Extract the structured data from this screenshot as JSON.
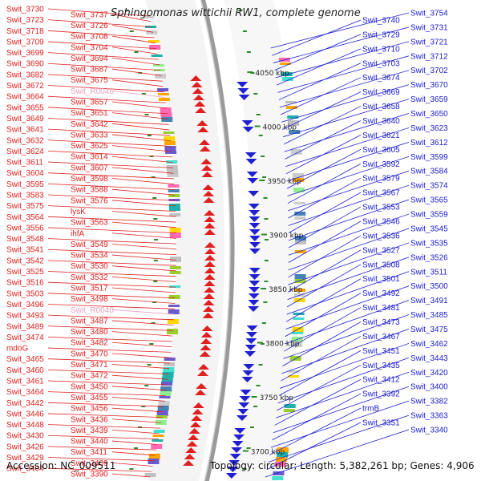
{
  "title": "Sphingomonas wittichii RW1, complete genome",
  "accession": "Accession: NC_009511",
  "topology": "Topology: circular; Length: 5,382,261 bp; Genes: 4,906",
  "colors": {
    "left": "#e02020",
    "right": "#2020d0",
    "rna": "#e8a0c0",
    "tick": "#2a8a2a"
  },
  "ruler": [
    {
      "label": "4050 kbp"
    },
    {
      "label": "4000 kbp"
    },
    {
      "label": "3950 kbp"
    },
    {
      "label": "3900 kbp"
    },
    {
      "label": "3850 kbp"
    },
    {
      "label": "3800 kbp"
    },
    {
      "label": "3750 kbp"
    },
    {
      "label": "3700 kbp"
    }
  ],
  "left_labels": [
    {
      "text": "Swit_3730"
    },
    {
      "text": "Swit_3737"
    },
    {
      "text": "Swit_3723"
    },
    {
      "text": "Swit_3726"
    },
    {
      "text": "Swit_3718"
    },
    {
      "text": "Swit_3708"
    },
    {
      "text": "Swit_3709"
    },
    {
      "text": "Swit_3704"
    },
    {
      "text": "Swit_3699"
    },
    {
      "text": "Swit_3694"
    },
    {
      "text": "Swit_3690"
    },
    {
      "text": "Swit_3687"
    },
    {
      "text": "Swit_3682"
    },
    {
      "text": "Swit_3675"
    },
    {
      "text": "Swit_3672"
    },
    {
      "text": "Swit_R0046",
      "rna": true
    },
    {
      "text": "Swit_3664"
    },
    {
      "text": "Swit_3657"
    },
    {
      "text": "Swit_3655"
    },
    {
      "text": "Swit_3651"
    },
    {
      "text": "Swit_3649"
    },
    {
      "text": "Swit_3642"
    },
    {
      "text": "Swit_3641"
    },
    {
      "text": "Swit_3633"
    },
    {
      "text": "Swit_3632"
    },
    {
      "text": "Swit_3625"
    },
    {
      "text": "Swit_3624"
    },
    {
      "text": "Swit_3614"
    },
    {
      "text": "Swit_3611"
    },
    {
      "text": "Swit_3607"
    },
    {
      "text": "Swit_3604"
    },
    {
      "text": "Swit_3598"
    },
    {
      "text": "Swit_3595"
    },
    {
      "text": "Swit_3588"
    },
    {
      "text": "Swit_3583"
    },
    {
      "text": "Swit_3576"
    },
    {
      "text": "Swit_3575"
    },
    {
      "text": "lysK"
    },
    {
      "text": "Swit_3564"
    },
    {
      "text": "Swit_3563"
    },
    {
      "text": "Swit_3556"
    },
    {
      "text": "ihfA"
    },
    {
      "text": "Swit_3548"
    },
    {
      "text": "Swit_3549"
    },
    {
      "text": "Swit_3541"
    },
    {
      "text": "Swit_3534"
    },
    {
      "text": "Swit_3542"
    },
    {
      "text": "Swit_3530"
    },
    {
      "text": "Swit_3525"
    },
    {
      "text": "Swit_3532"
    },
    {
      "text": "Swit_3516"
    },
    {
      "text": "Swit_3517"
    },
    {
      "text": "Swit_3503"
    },
    {
      "text": "Swit_3498"
    },
    {
      "text": "Swit_3496"
    },
    {
      "text": "Swit_R0040",
      "rna": true
    },
    {
      "text": "Swit_3493"
    },
    {
      "text": "Swit_3487"
    },
    {
      "text": "Swit_3489"
    },
    {
      "text": "Swit_3480"
    },
    {
      "text": "Swit_3474"
    },
    {
      "text": "Swit_3482"
    },
    {
      "text": "mdoG"
    },
    {
      "text": "Swit_3470"
    },
    {
      "text": "Swit_3465"
    },
    {
      "text": "Swit_3471"
    },
    {
      "text": "Swit_3460"
    },
    {
      "text": "Swit_3472"
    },
    {
      "text": "Swit_3461"
    },
    {
      "text": "Swit_3450"
    },
    {
      "text": "Swit_3464"
    },
    {
      "text": "Swit_3455"
    },
    {
      "text": "Swit_3442"
    },
    {
      "text": "Swit_3456"
    },
    {
      "text": "Swit_3446"
    },
    {
      "text": "Swit_3436"
    },
    {
      "text": "Swit_3448"
    },
    {
      "text": "Swit_3439"
    },
    {
      "text": "Swit_3430"
    },
    {
      "text": "Swit_3440"
    },
    {
      "text": "Swit_3426"
    },
    {
      "text": "Swit_3411"
    },
    {
      "text": "Swit_3429"
    },
    {
      "text": "Swit_3409"
    },
    {
      "text": "Swit_3404"
    },
    {
      "text": "Swit_3390"
    }
  ],
  "right_labels": [
    {
      "text": "Swit_3754"
    },
    {
      "text": "Swit_3740"
    },
    {
      "text": "Swit_3731"
    },
    {
      "text": "Swit_3729"
    },
    {
      "text": "Swit_3721"
    },
    {
      "text": "Swit_3710"
    },
    {
      "text": "Swit_3712"
    },
    {
      "text": "Swit_3703"
    },
    {
      "text": "Swit_3702"
    },
    {
      "text": "Swit_3674"
    },
    {
      "text": "Swit_3670"
    },
    {
      "text": "Swit_3669"
    },
    {
      "text": "Swit_3659"
    },
    {
      "text": "Swit_3658"
    },
    {
      "text": "Swit_3650"
    },
    {
      "text": "Swit_3640"
    },
    {
      "text": "Swit_3623"
    },
    {
      "text": "Swit_3621"
    },
    {
      "text": "Swit_3612"
    },
    {
      "text": "Swit_3605"
    },
    {
      "text": "Swit_3599"
    },
    {
      "text": "Swit_3592"
    },
    {
      "text": "Swit_3584"
    },
    {
      "text": "Swit_3579"
    },
    {
      "text": "Swit_3574"
    },
    {
      "text": "Swit_3567"
    },
    {
      "text": "Swit_3565"
    },
    {
      "text": "Swit_3553"
    },
    {
      "text": "Swit_3559"
    },
    {
      "text": "Swit_3546"
    },
    {
      "text": "Swit_3545"
    },
    {
      "text": "Swit_3536"
    },
    {
      "text": "Swit_3535"
    },
    {
      "text": "Swit_3527"
    },
    {
      "text": "Swit_3526"
    },
    {
      "text": "Swit_3508"
    },
    {
      "text": "Swit_3511"
    },
    {
      "text": "Swit_3501"
    },
    {
      "text": "Swit_3500"
    },
    {
      "text": "Swit_3492"
    },
    {
      "text": "Swit_3491"
    },
    {
      "text": "Swit_3481"
    },
    {
      "text": "Swit_3485"
    },
    {
      "text": "Swit_3473"
    },
    {
      "text": "Swit_3475"
    },
    {
      "text": "Swit_3467"
    },
    {
      "text": "Swit_3462"
    },
    {
      "text": "Swit_3451"
    },
    {
      "text": "Swit_3443"
    },
    {
      "text": "Swit_3435"
    },
    {
      "text": "Swit_3420"
    },
    {
      "text": "Swit_3412"
    },
    {
      "text": "Swit_3400"
    },
    {
      "text": "Swit_3392"
    },
    {
      "text": "Swit_3382"
    },
    {
      "text": "trmB"
    },
    {
      "text": "Swit_3363"
    },
    {
      "text": "Swit_3351"
    },
    {
      "text": "Swit_3340"
    }
  ]
}
